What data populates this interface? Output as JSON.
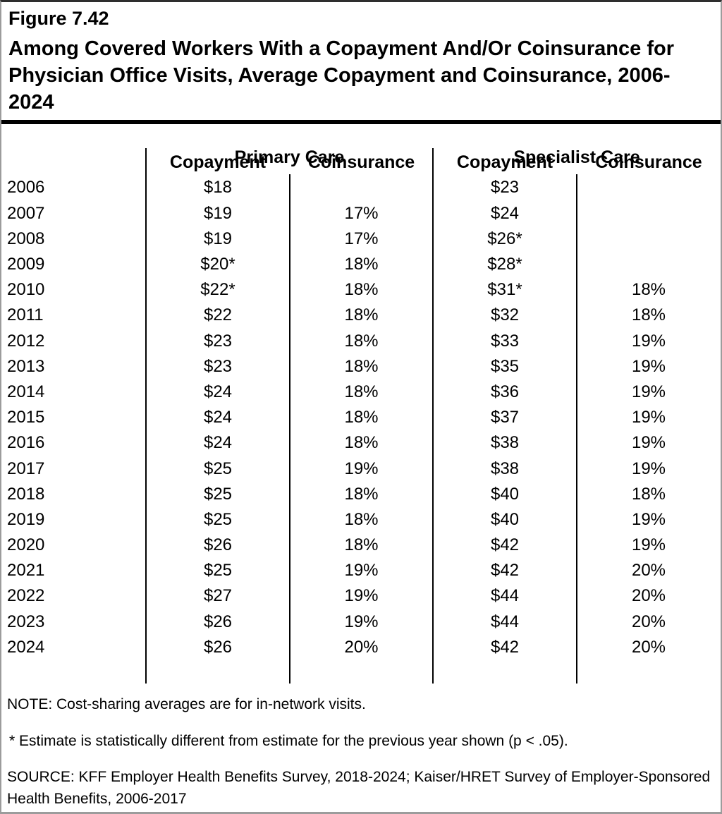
{
  "figure": {
    "label": "Figure 7.42",
    "title": "Among Covered Workers With a Copayment And/Or Coinsurance for Physician Office Visits, Average Copayment and Coinsurance, 2006-2024"
  },
  "table": {
    "group_headers": {
      "primary": "Primary Care",
      "specialist": "Specialist Care"
    },
    "sub_headers": {
      "primary_copayment": "Copayment",
      "primary_coinsurance": "Coinsurance",
      "specialist_copayment": "Copayment",
      "specialist_coinsurance": "Coinsurance"
    },
    "rows": [
      {
        "year": "2006",
        "pc_copay": "$18",
        "pc_coins": "",
        "sc_copay": "$23",
        "sc_coins": ""
      },
      {
        "year": "2007",
        "pc_copay": "$19",
        "pc_coins": "17%",
        "sc_copay": "$24",
        "sc_coins": ""
      },
      {
        "year": "2008",
        "pc_copay": "$19",
        "pc_coins": "17%",
        "sc_copay": "$26*",
        "sc_coins": ""
      },
      {
        "year": "2009",
        "pc_copay": "$20*",
        "pc_coins": "18%",
        "sc_copay": "$28*",
        "sc_coins": ""
      },
      {
        "year": "2010",
        "pc_copay": "$22*",
        "pc_coins": "18%",
        "sc_copay": "$31*",
        "sc_coins": "18%"
      },
      {
        "year": "2011",
        "pc_copay": "$22",
        "pc_coins": "18%",
        "sc_copay": "$32",
        "sc_coins": "18%"
      },
      {
        "year": "2012",
        "pc_copay": "$23",
        "pc_coins": "18%",
        "sc_copay": "$33",
        "sc_coins": "19%"
      },
      {
        "year": "2013",
        "pc_copay": "$23",
        "pc_coins": "18%",
        "sc_copay": "$35",
        "sc_coins": "19%"
      },
      {
        "year": "2014",
        "pc_copay": "$24",
        "pc_coins": "18%",
        "sc_copay": "$36",
        "sc_coins": "19%"
      },
      {
        "year": "2015",
        "pc_copay": "$24",
        "pc_coins": "18%",
        "sc_copay": "$37",
        "sc_coins": "19%"
      },
      {
        "year": "2016",
        "pc_copay": "$24",
        "pc_coins": "18%",
        "sc_copay": "$38",
        "sc_coins": "19%"
      },
      {
        "year": "2017",
        "pc_copay": "$25",
        "pc_coins": "19%",
        "sc_copay": "$38",
        "sc_coins": "19%"
      },
      {
        "year": "2018",
        "pc_copay": "$25",
        "pc_coins": "18%",
        "sc_copay": "$40",
        "sc_coins": "18%"
      },
      {
        "year": "2019",
        "pc_copay": "$25",
        "pc_coins": "18%",
        "sc_copay": "$40",
        "sc_coins": "19%"
      },
      {
        "year": "2020",
        "pc_copay": "$26",
        "pc_coins": "18%",
        "sc_copay": "$42",
        "sc_coins": "19%"
      },
      {
        "year": "2021",
        "pc_copay": "$25",
        "pc_coins": "19%",
        "sc_copay": "$42",
        "sc_coins": "20%"
      },
      {
        "year": "2022",
        "pc_copay": "$27",
        "pc_coins": "19%",
        "sc_copay": "$44",
        "sc_coins": "20%"
      },
      {
        "year": "2023",
        "pc_copay": "$26",
        "pc_coins": "19%",
        "sc_copay": "$44",
        "sc_coins": "20%"
      },
      {
        "year": "2024",
        "pc_copay": "$26",
        "pc_coins": "20%",
        "sc_copay": "$42",
        "sc_coins": "20%"
      }
    ]
  },
  "notes": {
    "note": "NOTE: Cost-sharing averages are for in-network visits.",
    "estimate": "* Estimate is statistically different from estimate for the previous year shown (p < .05).",
    "source": "SOURCE: KFF Employer Health Benefits Survey, 2018-2024; Kaiser/HRET Survey of Employer-Sponsored Health Benefits, 2006-2017"
  },
  "chart_data": {
    "type": "table",
    "title": "Among Covered Workers With a Copayment And/Or Coinsurance for Physician Office Visits, Average Copayment and Coinsurance, 2006-2024",
    "categories": [
      2006,
      2007,
      2008,
      2009,
      2010,
      2011,
      2012,
      2013,
      2014,
      2015,
      2016,
      2017,
      2018,
      2019,
      2020,
      2021,
      2022,
      2023,
      2024
    ],
    "series": [
      {
        "name": "Primary Care Copayment ($)",
        "values": [
          18,
          19,
          19,
          20,
          22,
          22,
          23,
          23,
          24,
          24,
          24,
          25,
          25,
          25,
          26,
          25,
          27,
          26,
          26
        ]
      },
      {
        "name": "Primary Care Coinsurance (%)",
        "values": [
          null,
          17,
          17,
          18,
          18,
          18,
          18,
          18,
          18,
          18,
          18,
          19,
          18,
          18,
          18,
          19,
          19,
          19,
          20
        ]
      },
      {
        "name": "Specialist Care Copayment ($)",
        "values": [
          23,
          24,
          26,
          28,
          31,
          32,
          33,
          35,
          36,
          37,
          38,
          38,
          40,
          40,
          42,
          42,
          44,
          44,
          42
        ]
      },
      {
        "name": "Specialist Care Coinsurance (%)",
        "values": [
          null,
          null,
          null,
          null,
          18,
          18,
          19,
          19,
          19,
          19,
          19,
          19,
          18,
          19,
          19,
          20,
          20,
          20,
          20
        ]
      }
    ],
    "annotations": {
      "asterisk_meaning": "Estimate is statistically different from estimate for the previous year shown (p < .05).",
      "primary_copayment_asterisk_years": [
        2009,
        2010
      ],
      "specialist_copayment_asterisk_years": [
        2008,
        2009,
        2010
      ]
    }
  },
  "colors": {
    "text": "#000000",
    "background": "#ffffff",
    "divider_rule": "#000000",
    "outer_border": "#9c9c9c"
  }
}
